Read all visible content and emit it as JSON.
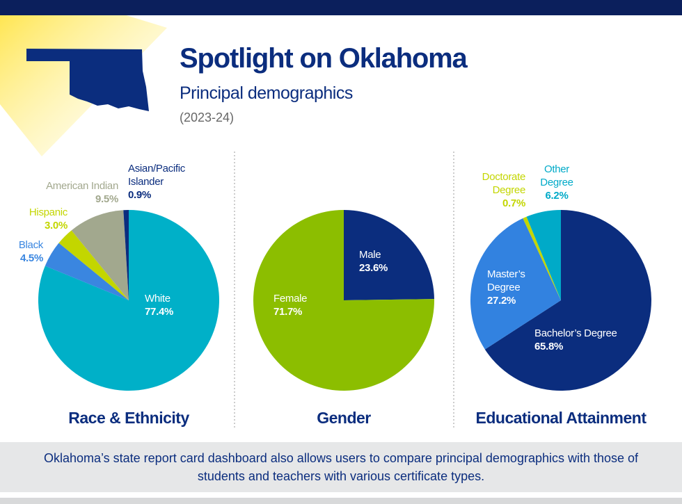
{
  "header": {
    "title": "Spotlight on Oklahoma",
    "subtitle": "Principal demographics",
    "years": "(2023-24)"
  },
  "chart_data": [
    {
      "type": "pie",
      "title": "Race & Ethnicity",
      "categories": [
        "White",
        "Black",
        "Hispanic",
        "American Indian",
        "Asian/Pacific Islander"
      ],
      "values": [
        77.4,
        4.5,
        3.0,
        9.5,
        0.9
      ],
      "value_labels": [
        "77.4%",
        "4.5%",
        "3.0%",
        "9.5%",
        "0.9%"
      ],
      "colors": [
        "#00b0c8",
        "#3a86e0",
        "#c3d600",
        "#a2a88e",
        "#0b2d7e"
      ]
    },
    {
      "type": "pie",
      "title": "Gender",
      "categories": [
        "Male",
        "Female"
      ],
      "values": [
        23.6,
        71.7
      ],
      "value_labels": [
        "23.6%",
        "71.7%"
      ],
      "colors": [
        "#0b2d7e",
        "#8cbe00"
      ]
    },
    {
      "type": "pie",
      "title": "Educational Attainment",
      "categories": [
        "Bachelor’s Degree",
        "Master’s Degree",
        "Doctorate Degree",
        "Other Degree"
      ],
      "values": [
        65.8,
        27.2,
        0.7,
        6.2
      ],
      "value_labels": [
        "65.8%",
        "27.2%",
        "0.7%",
        "6.2%"
      ],
      "colors": [
        "#0b2d7e",
        "#3282e0",
        "#c3d600",
        "#00aac8"
      ]
    }
  ],
  "footer": "Oklahoma’s state report card dashboard also allows users to compare principal demographics with those of students and teachers with various certificate types."
}
